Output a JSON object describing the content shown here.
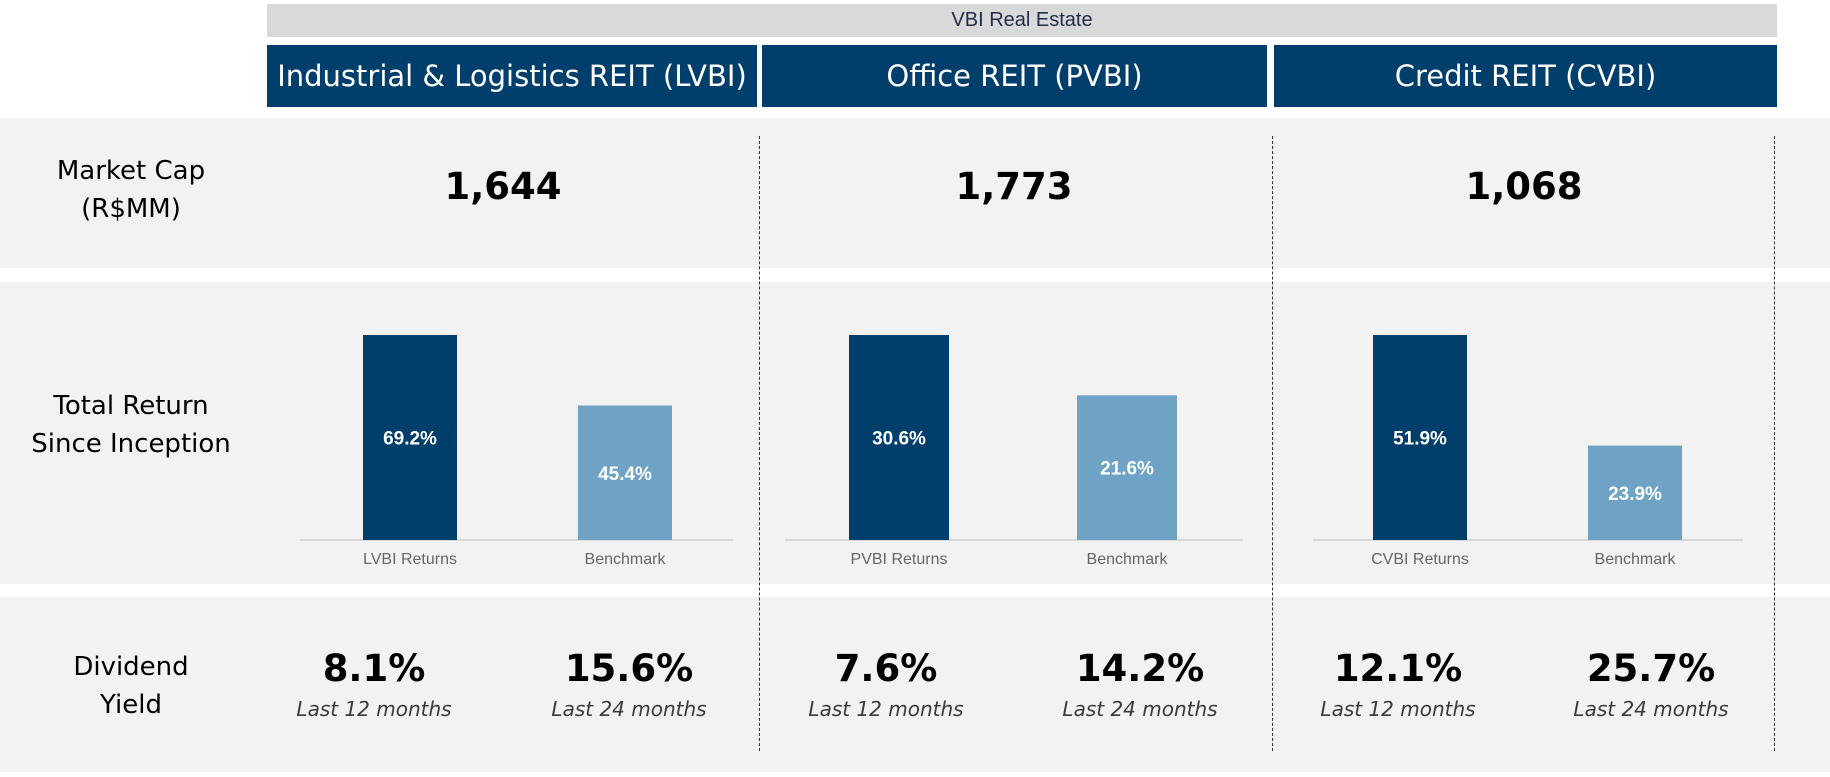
{
  "header": {
    "title": "VBI Real Estate"
  },
  "columns": [
    {
      "title": "Industrial & Logistics REIT (LVBI)",
      "market_cap": "1,644",
      "dividend": [
        {
          "value": "8.1%",
          "period": "Last 12 months"
        },
        {
          "value": "15.6%",
          "period": "Last 24 months"
        }
      ]
    },
    {
      "title": "Office REIT (PVBI)",
      "market_cap": "1,773",
      "dividend": [
        {
          "value": "7.6%",
          "period": "Last 12 months"
        },
        {
          "value": "14.2%",
          "period": "Last 24 months"
        }
      ]
    },
    {
      "title": "Credit REIT (CVBI)",
      "market_cap": "1,068",
      "dividend": [
        {
          "value": "12.1%",
          "period": "Last 12 months"
        },
        {
          "value": "25.7%",
          "period": "Last 24 months"
        }
      ]
    }
  ],
  "row_labels": {
    "market_cap": [
      "Market Cap",
      "(R$MM)"
    ],
    "total_return": [
      "Total Return",
      "Since Inception"
    ],
    "dividend_yield": [
      "Dividend",
      "Yield"
    ]
  },
  "colors": {
    "primary": "#003f6b",
    "benchmark": "#6fa3c5",
    "band": "#f2f2f2",
    "header_band": "#d9d9d9"
  },
  "chart_data": [
    {
      "type": "bar",
      "categories": [
        "LVBI Returns",
        "Benchmark"
      ],
      "values": [
        69.2,
        45.4
      ],
      "data_labels": [
        "69.2%",
        "45.4%"
      ],
      "colors": [
        "#003f6b",
        "#6fa3c5"
      ]
    },
    {
      "type": "bar",
      "categories": [
        "PVBI Returns",
        "Benchmark"
      ],
      "values": [
        30.6,
        21.6
      ],
      "data_labels": [
        "30.6%",
        "21.6%"
      ],
      "colors": [
        "#003f6b",
        "#6fa3c5"
      ]
    },
    {
      "type": "bar",
      "categories": [
        "CVBI Returns",
        "Benchmark"
      ],
      "values": [
        51.9,
        23.9
      ],
      "data_labels": [
        "51.9%",
        "23.9%"
      ],
      "colors": [
        "#003f6b",
        "#6fa3c5"
      ]
    }
  ]
}
